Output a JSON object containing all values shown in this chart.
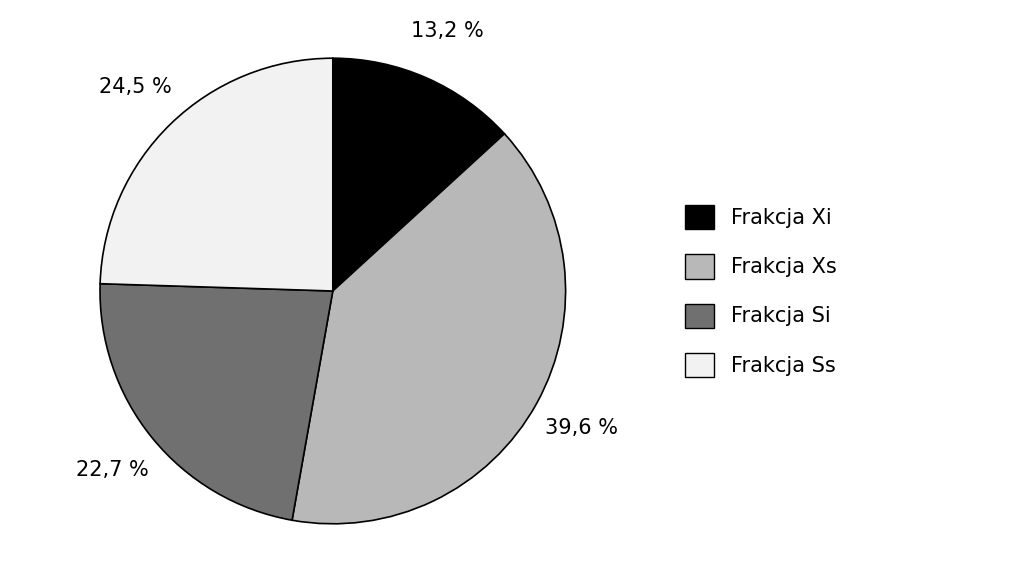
{
  "labels": [
    "Frakcja Xi",
    "Frakcja Xs",
    "Frakcja Si",
    "Frakcja Ss"
  ],
  "values": [
    13.2,
    39.6,
    22.7,
    24.5
  ],
  "colors": [
    "#000000",
    "#b8b8b8",
    "#707070",
    "#f2f2f2"
  ],
  "label_texts": [
    "13,2 %",
    "39,6 %",
    "22,7 %",
    "24,5 %"
  ],
  "background_color": "#ffffff",
  "label_fontsize": 15,
  "legend_fontsize": 15,
  "startangle": 90
}
